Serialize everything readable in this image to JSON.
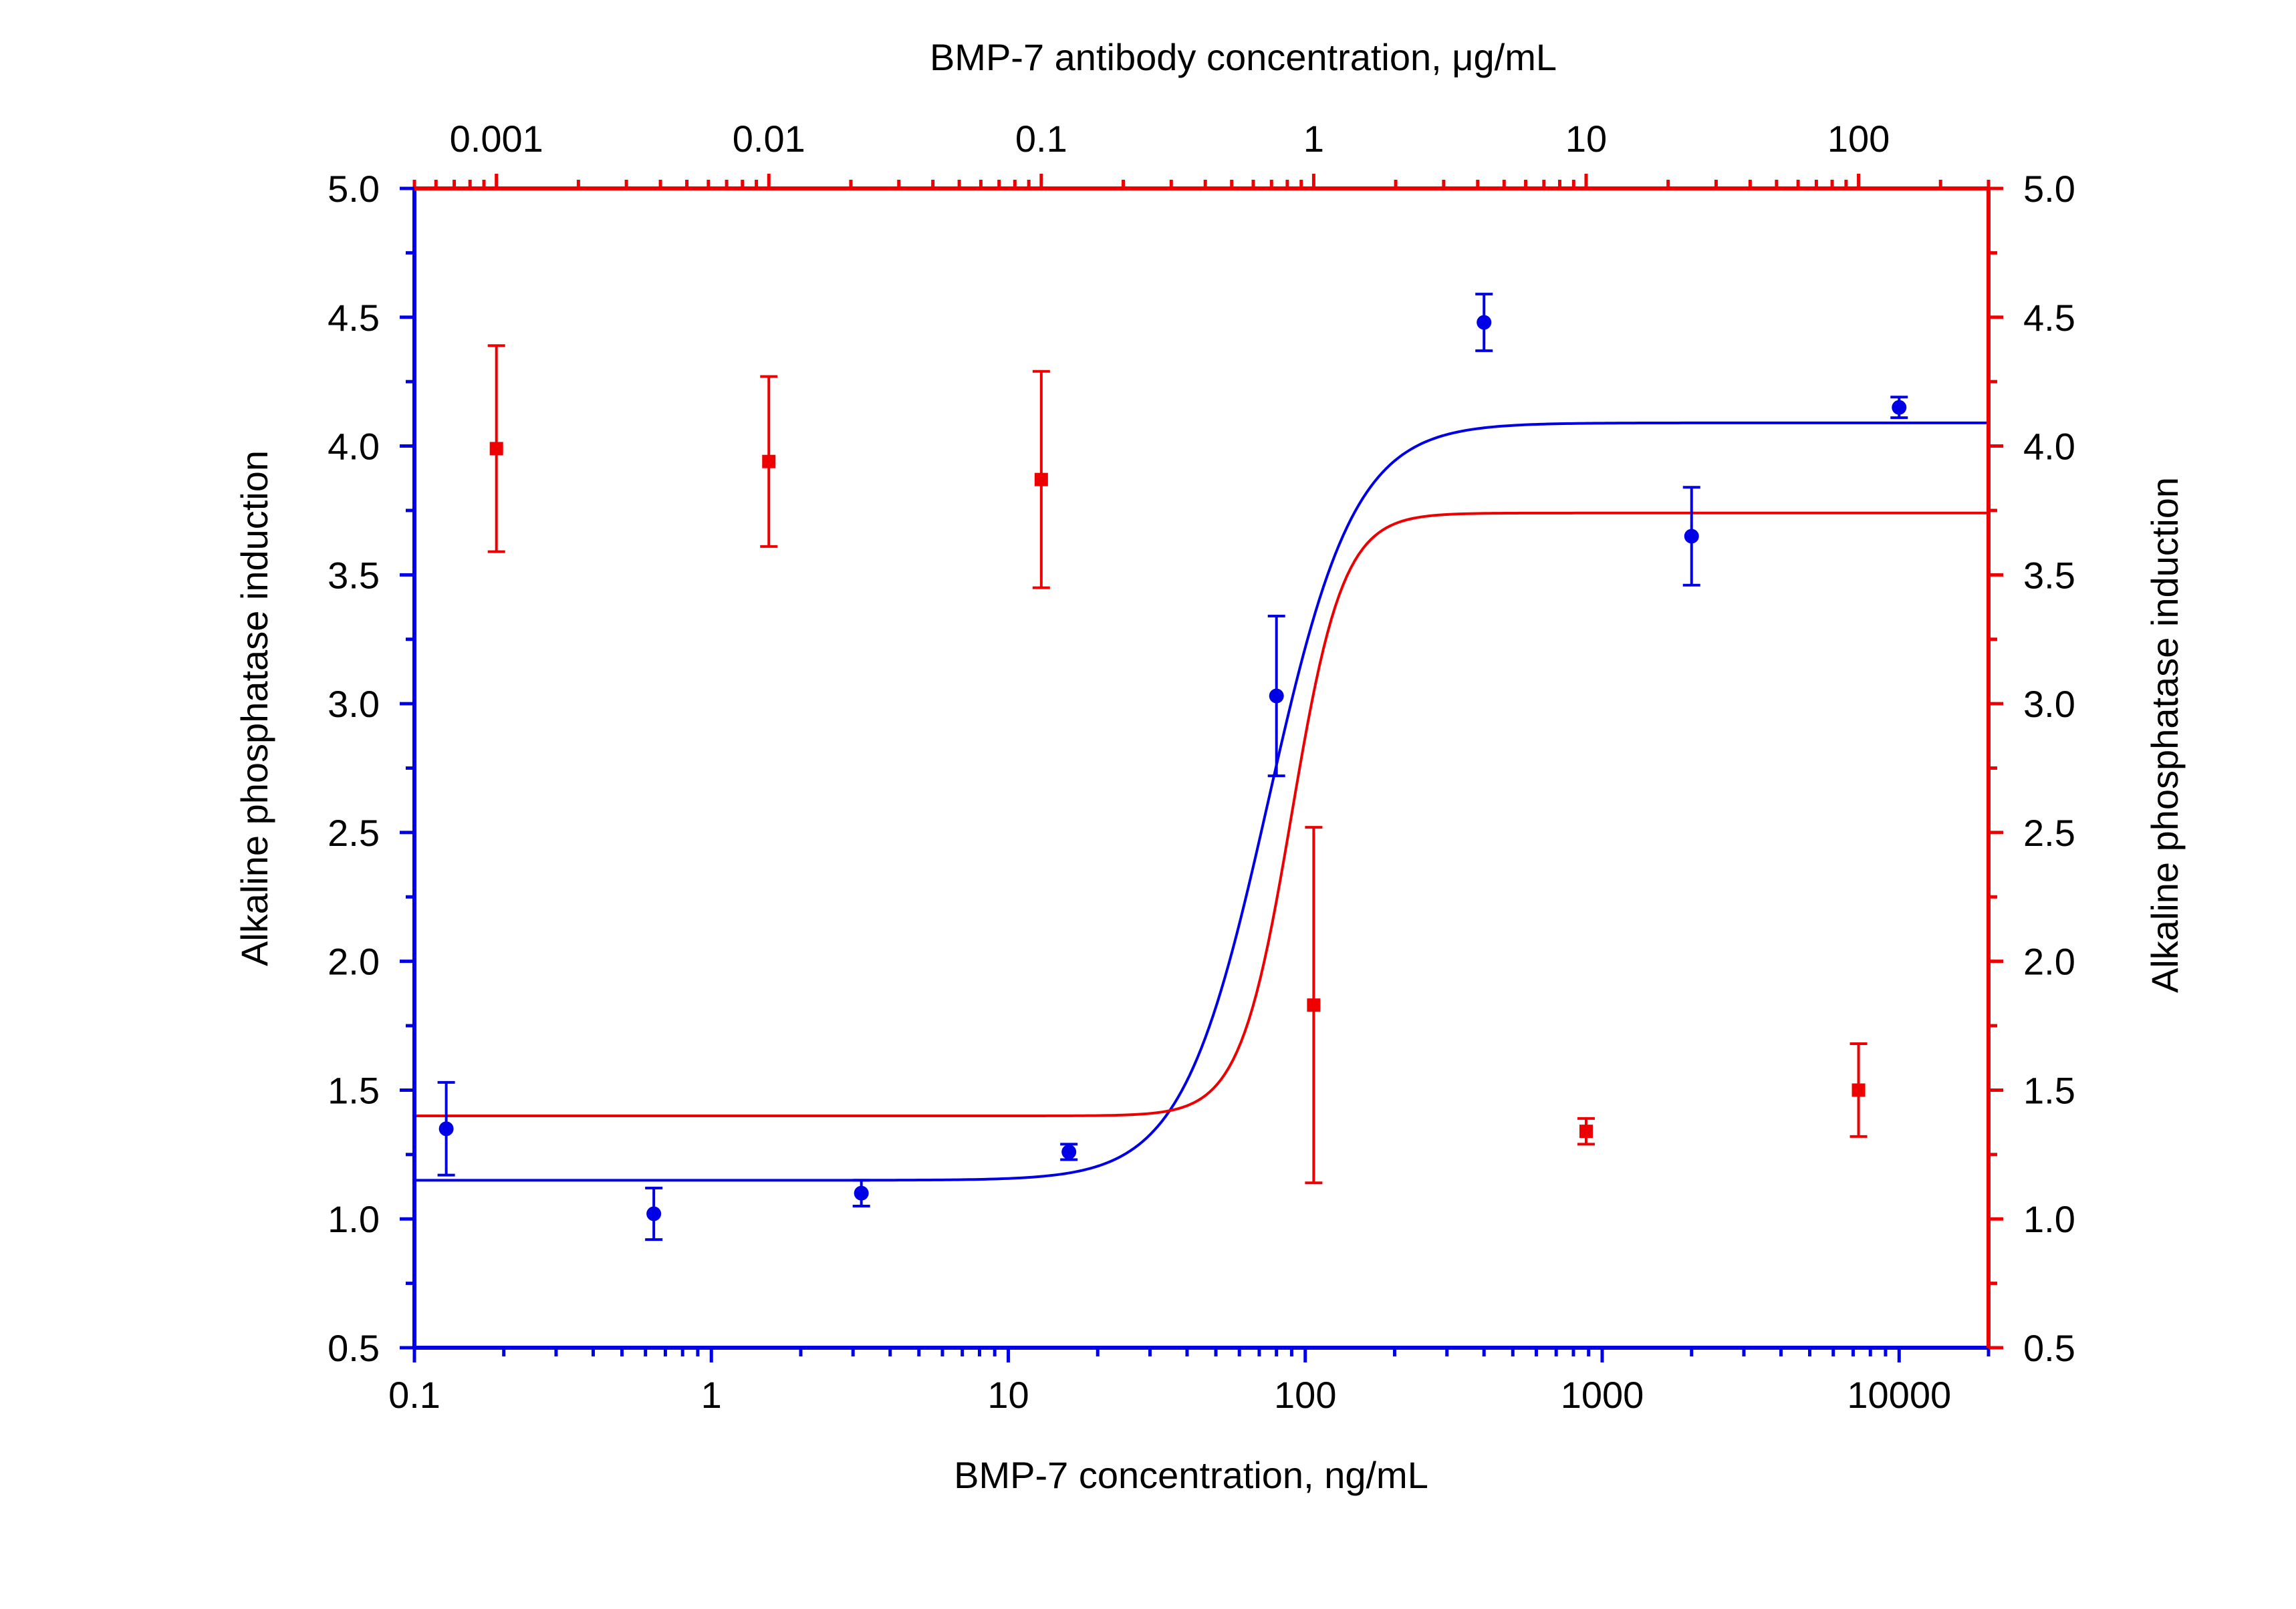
{
  "chart_data": {
    "type": "scatter",
    "colors": {
      "blue": "#0000e6",
      "red": "#ee0000",
      "text": "#000000"
    },
    "bottom_axis": {
      "label": "BMP-7 concentration, ng/mL",
      "scale": "log",
      "range": [
        0.1,
        20000
      ],
      "ticks": [
        0.1,
        1,
        10,
        100,
        1000,
        10000
      ],
      "tick_labels": [
        "0.1",
        "1",
        "10",
        "100",
        "1000",
        "10000"
      ]
    },
    "top_axis": {
      "label": "BMP-7 antibody concentration, μg/mL",
      "scale": "log",
      "range": [
        0.0005,
        300
      ],
      "ticks": [
        0.001,
        0.01,
        0.1,
        1,
        10,
        100
      ],
      "tick_labels": [
        "0.001",
        "0.01",
        "0.1",
        "1",
        "10",
        "100"
      ]
    },
    "left_axis": {
      "label": "Alkaline phosphatase  induction",
      "range": [
        0.5,
        5.0
      ],
      "ticks": [
        0.5,
        1.0,
        1.5,
        2.0,
        2.5,
        3.0,
        3.5,
        4.0,
        4.5,
        5.0
      ],
      "tick_labels": [
        "0.5",
        "1.0",
        "1.5",
        "2.0",
        "2.5",
        "3.0",
        "3.5",
        "4.0",
        "4.5",
        "5.0"
      ]
    },
    "right_axis": {
      "label": "Alkaline phosphatase  induction",
      "range": [
        0.5,
        5.0
      ],
      "ticks": [
        0.5,
        1.0,
        1.5,
        2.0,
        2.5,
        3.0,
        3.5,
        4.0,
        4.5,
        5.0
      ],
      "tick_labels": [
        "0.5",
        "1.0",
        "1.5",
        "2.0",
        "2.5",
        "3.0",
        "3.5",
        "4.0",
        "4.5",
        "5.0"
      ]
    },
    "series": [
      {
        "x_axis": "bottom",
        "color": "blue",
        "marker": "circle",
        "points": [
          {
            "x": 0.128,
            "y": 1.35,
            "err": 0.18
          },
          {
            "x": 0.64,
            "y": 1.02,
            "err": 0.1
          },
          {
            "x": 3.2,
            "y": 1.1,
            "err": 0.05
          },
          {
            "x": 16,
            "y": 1.26,
            "err": 0.03
          },
          {
            "x": 80,
            "y": 3.03,
            "err": 0.31
          },
          {
            "x": 400,
            "y": 4.48,
            "err": 0.11
          },
          {
            "x": 2000,
            "y": 3.65,
            "err": 0.19
          },
          {
            "x": 10000,
            "y": 4.15,
            "err": 0.04
          }
        ],
        "fit": {
          "bottom": 1.15,
          "top": 4.09,
          "ec50": 75,
          "hill": 3.0
        }
      },
      {
        "x_axis": "top",
        "color": "red",
        "marker": "square",
        "points": [
          {
            "x": 0.001,
            "y": 3.99,
            "err": 0.4
          },
          {
            "x": 0.01,
            "y": 3.94,
            "err": 0.33
          },
          {
            "x": 0.1,
            "y": 3.87,
            "err": 0.42
          },
          {
            "x": 1,
            "y": 1.83,
            "err": 0.69
          },
          {
            "x": 10,
            "y": 1.34,
            "err": 0.05
          },
          {
            "x": 100,
            "y": 1.5,
            "err": 0.18
          }
        ],
        "fit": {
          "bottom": 1.4,
          "top": 3.74,
          "ic50": 0.83,
          "hill": 4.6
        }
      }
    ]
  }
}
